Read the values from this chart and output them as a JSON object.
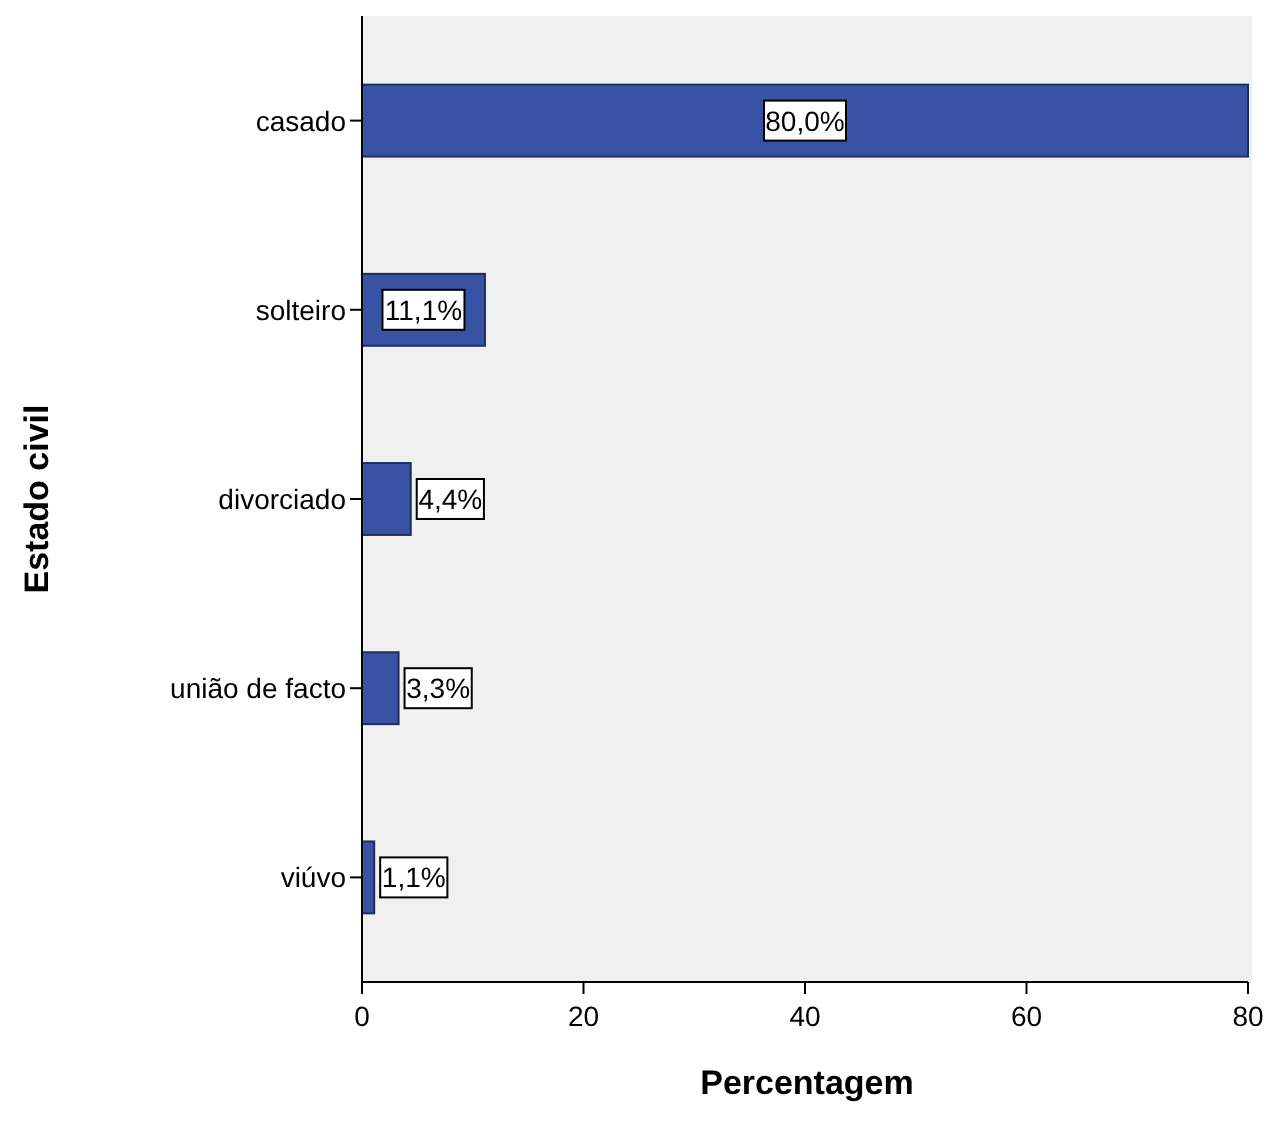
{
  "chart_data": {
    "type": "bar",
    "orientation": "horizontal",
    "xlabel": "Percentagem",
    "ylabel": "Estado civil",
    "categories": [
      "casado",
      "solteiro",
      "divorciado",
      "união de facto",
      "viúvo"
    ],
    "values": [
      80.0,
      11.1,
      4.4,
      3.3,
      1.1
    ],
    "value_labels": [
      "80,0%",
      "11,1%",
      "4,4%",
      "3,3%",
      "1,1%"
    ],
    "color": "#3953a4",
    "xlim": [
      0,
      80
    ],
    "xticks": [
      0,
      20,
      40,
      60,
      80
    ],
    "grid": false
  }
}
